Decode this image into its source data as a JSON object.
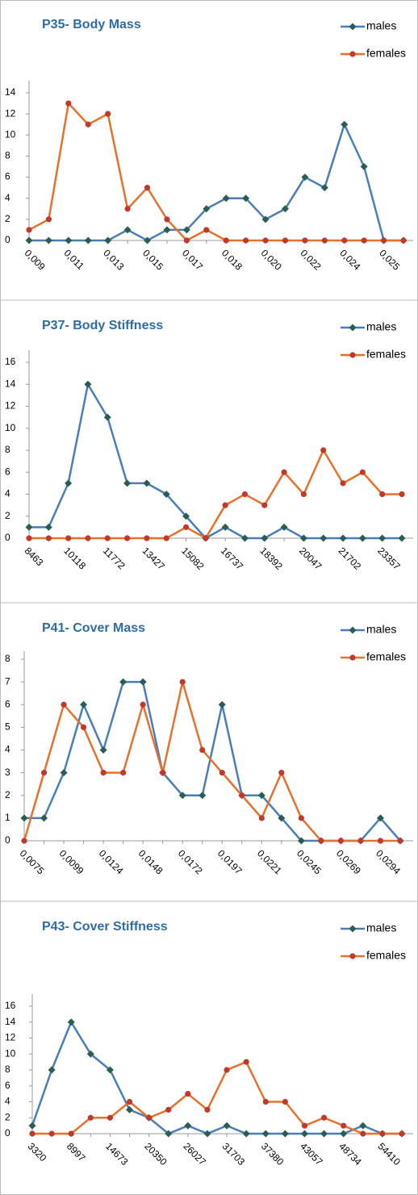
{
  "chart_data": [
    {
      "type": "line",
      "title": "P35- Body Mass",
      "categories": [
        "0,009",
        null,
        "0,011",
        null,
        "0,013",
        null,
        "0,015",
        null,
        "0,017",
        null,
        "0,018",
        null,
        "0,020",
        null,
        "0,022",
        null,
        "0,024",
        null,
        "0,025",
        null
      ],
      "series": [
        {
          "name": "males",
          "color": "#4a7ebb",
          "marker_color": "#2b5e52",
          "marker": "diamond",
          "values": [
            0,
            0,
            0,
            0,
            0,
            1,
            0,
            1,
            1,
            3,
            4,
            4,
            2,
            3,
            6,
            5,
            11,
            7,
            0,
            0
          ]
        },
        {
          "name": "females",
          "color": "#e8712a",
          "marker_color": "#c0392b",
          "marker": "circle",
          "values": [
            1,
            2,
            13,
            11,
            12,
            3,
            5,
            2,
            0,
            1,
            0,
            0,
            0,
            0,
            0,
            0,
            0,
            0,
            0,
            0
          ]
        }
      ],
      "ylim": [
        0,
        14
      ],
      "yticks": [
        0,
        2,
        4,
        6,
        8,
        10,
        12,
        14
      ],
      "legend": "top-right"
    },
    {
      "type": "line",
      "title": "P37- Body Stiffness",
      "categories": [
        "8463",
        null,
        "10118",
        null,
        "11772",
        null,
        "13427",
        null,
        "15082",
        null,
        "16737",
        null,
        "18392",
        null,
        "20047",
        null,
        "21702",
        null,
        "23357",
        null
      ],
      "series": [
        {
          "name": "males",
          "color": "#4a7ebb",
          "marker_color": "#2b5e52",
          "marker": "diamond",
          "values": [
            1,
            1,
            5,
            14,
            11,
            5,
            5,
            4,
            2,
            0,
            1,
            0,
            0,
            1,
            0,
            0,
            0,
            0,
            0,
            0
          ]
        },
        {
          "name": "females",
          "color": "#e8712a",
          "marker_color": "#c0392b",
          "marker": "circle",
          "values": [
            0,
            0,
            0,
            0,
            0,
            0,
            0,
            0,
            1,
            0,
            3,
            4,
            3,
            6,
            4,
            8,
            5,
            6,
            4,
            4
          ]
        }
      ],
      "ylim": [
        0,
        16
      ],
      "yticks": [
        0,
        2,
        4,
        6,
        8,
        10,
        12,
        14,
        16
      ],
      "legend": "top-right"
    },
    {
      "type": "line",
      "title": "P41- Cover Mass",
      "categories": [
        "0,0075",
        null,
        "0,0099",
        null,
        "0,0124",
        null,
        "0,0148",
        null,
        "0,0172",
        null,
        "0,0197",
        null,
        "0,0221",
        null,
        "0,0245",
        null,
        "0,0269",
        null,
        "0,0294",
        null
      ],
      "series": [
        {
          "name": "males",
          "color": "#4a7ebb",
          "marker_color": "#2b5e52",
          "marker": "diamond",
          "values": [
            1,
            1,
            3,
            6,
            4,
            7,
            7,
            3,
            2,
            2,
            6,
            2,
            2,
            1,
            0,
            0,
            0,
            0,
            1,
            0
          ]
        },
        {
          "name": "females",
          "color": "#e8712a",
          "marker_color": "#c0392b",
          "marker": "circle",
          "values": [
            0,
            3,
            6,
            5,
            3,
            3,
            6,
            3,
            7,
            4,
            3,
            2,
            1,
            3,
            1,
            0,
            0,
            0,
            0,
            0
          ]
        }
      ],
      "ylim": [
        0,
        8
      ],
      "yticks": [
        0,
        1,
        2,
        3,
        4,
        5,
        6,
        7,
        8
      ],
      "legend": "top-right"
    },
    {
      "type": "line",
      "title": "P43- Cover Stiffness",
      "categories": [
        "3320",
        null,
        "8997",
        null,
        "14673",
        null,
        "20350",
        null,
        "26027",
        null,
        "31703",
        null,
        "37380",
        null,
        "43057",
        null,
        "48734",
        null,
        "54410",
        null
      ],
      "series": [
        {
          "name": "males",
          "color": "#4a7ebb",
          "marker_color": "#2b5e52",
          "marker": "diamond",
          "values": [
            1,
            8,
            14,
            10,
            8,
            3,
            2,
            0,
            1,
            0,
            1,
            0,
            0,
            0,
            0,
            0,
            0,
            1,
            0,
            0
          ]
        },
        {
          "name": "females",
          "color": "#e8712a",
          "marker_color": "#c0392b",
          "marker": "circle",
          "values": [
            0,
            0,
            0,
            2,
            2,
            4,
            2,
            3,
            5,
            3,
            8,
            9,
            4,
            4,
            1,
            2,
            1,
            0,
            0,
            0
          ]
        }
      ],
      "ylim": [
        0,
        16
      ],
      "yticks": [
        0,
        2,
        4,
        6,
        8,
        10,
        12,
        14,
        16
      ],
      "legend": "top-right"
    }
  ]
}
